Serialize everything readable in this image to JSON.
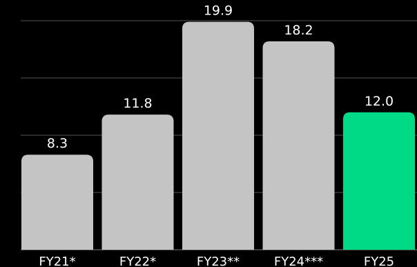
{
  "chart_data": {
    "type": "bar",
    "categories": [
      "FY21*",
      "FY22*",
      "FY23**",
      "FY24***",
      "FY25"
    ],
    "values": [
      8.3,
      11.8,
      19.9,
      18.2,
      12.0
    ],
    "data_labels": [
      "8.3",
      "11.8",
      "19.9",
      "18.2",
      "12.0"
    ],
    "ylim": [
      0,
      20
    ],
    "grid": true,
    "colors": {
      "background": "#000000",
      "bar_default": "#c4c4c4",
      "bar_highlight": "#00d985",
      "gridline": "#555555",
      "text": "#ffffff"
    },
    "highlight_index": 4
  }
}
